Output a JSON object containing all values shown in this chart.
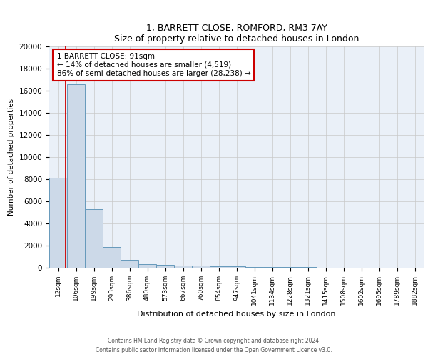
{
  "title1": "1, BARRETT CLOSE, ROMFORD, RM3 7AY",
  "title2": "Size of property relative to detached houses in London",
  "xlabel": "Distribution of detached houses by size in London",
  "ylabel": "Number of detached properties",
  "bin_labels": [
    "12sqm",
    "106sqm",
    "199sqm",
    "293sqm",
    "386sqm",
    "480sqm",
    "573sqm",
    "667sqm",
    "760sqm",
    "854sqm",
    "947sqm",
    "1041sqm",
    "1134sqm",
    "1228sqm",
    "1321sqm",
    "1415sqm",
    "1508sqm",
    "1602sqm",
    "1695sqm",
    "1789sqm",
    "1882sqm"
  ],
  "bar_heights": [
    8100,
    16600,
    5300,
    1850,
    700,
    300,
    230,
    200,
    200,
    150,
    100,
    80,
    60,
    50,
    40,
    30,
    25,
    20,
    15,
    10,
    0
  ],
  "bar_color": "#ccd9e8",
  "bar_edge_color": "#6699bb",
  "grid_color": "#c8c8c8",
  "background_color": "#eaf0f8",
  "red_line_x": 0.42,
  "annotation_text": "1 BARRETT CLOSE: 91sqm\n← 14% of detached houses are smaller (4,519)\n86% of semi-detached houses are larger (28,238) →",
  "annotation_box_color": "#ffffff",
  "annotation_border_color": "#cc0000",
  "footer1": "Contains HM Land Registry data © Crown copyright and database right 2024.",
  "footer2": "Contains public sector information licensed under the Open Government Licence v3.0.",
  "ylim": [
    0,
    20000
  ],
  "yticks": [
    0,
    2000,
    4000,
    6000,
    8000,
    10000,
    12000,
    14000,
    16000,
    18000,
    20000
  ]
}
